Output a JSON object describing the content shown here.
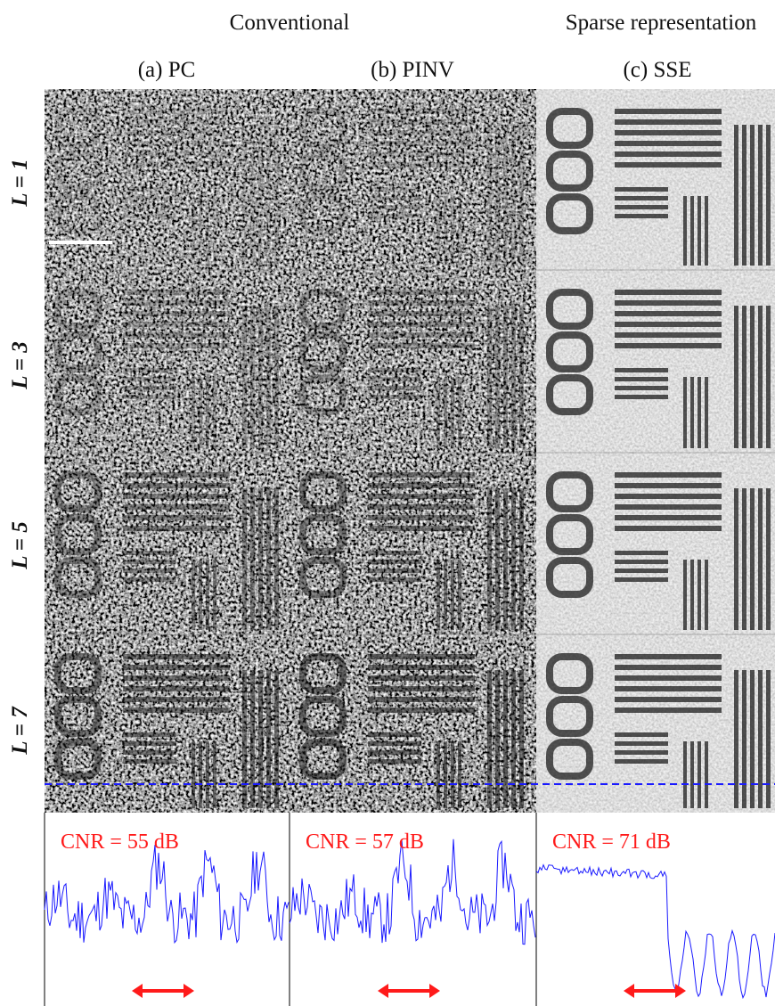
{
  "header": {
    "group_left": "Conventional",
    "group_right": "Sparse representation"
  },
  "columns": [
    "(a) PC",
    "(b) PINV",
    "(c) SSE"
  ],
  "rows": [
    "L = 1",
    "L = 3",
    "L = 5",
    "L = 7"
  ],
  "cnr_labels": [
    "CNR = 55 dB",
    "CNR = 57 dB",
    "CNR = 71 dB"
  ]
}
